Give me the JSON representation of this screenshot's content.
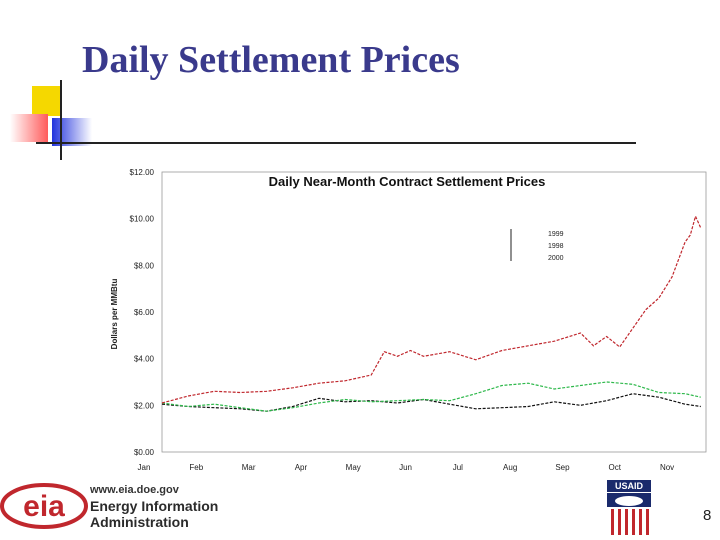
{
  "slide": {
    "title": "Daily Settlement Prices",
    "page_number": "8"
  },
  "footer": {
    "eia_logo_text": "eia",
    "eia_url": "www.eia.doe.gov",
    "eia_name_line1": "Energy Information",
    "eia_name_line2": "Administration",
    "usaid_label": "USAID"
  },
  "colors": {
    "title": "#3a3a8c",
    "series_red": "#c0272d",
    "series_black": "#111111",
    "series_green": "#2db84a",
    "eia_red": "#c0272d"
  },
  "chart_data": {
    "type": "line",
    "title": "Daily Near-Month Contract Settlement Prices",
    "ylabel": "Dollars per MMBtu",
    "xlabel": "",
    "ylim": [
      0,
      12
    ],
    "y_ticks": [
      "$0.00",
      "$2.00",
      "$4.00",
      "$6.00",
      "$8.00",
      "$10.00",
      "$12.00"
    ],
    "x_ticks": [
      "Jan",
      "Feb",
      "Mar",
      "Apr",
      "May",
      "Jun",
      "Jul",
      "Aug",
      "Sep",
      "Oct",
      "Nov"
    ],
    "grid": false,
    "legend": "upper-right",
    "series": [
      {
        "name": "1999",
        "color": "#111111",
        "x": [
          0,
          0.5,
          1,
          1.5,
          2,
          2.5,
          3,
          3.5,
          4,
          4.5,
          5,
          5.5,
          6,
          6.5,
          7,
          7.5,
          8,
          8.5,
          9,
          9.5,
          10,
          10.3
        ],
        "y": [
          2.05,
          1.95,
          1.9,
          1.85,
          1.75,
          1.95,
          2.3,
          2.15,
          2.2,
          2.1,
          2.25,
          2.05,
          1.85,
          1.9,
          1.95,
          2.15,
          2.0,
          2.2,
          2.5,
          2.35,
          2.05,
          1.95
        ]
      },
      {
        "name": "1998",
        "color": "#2db84a",
        "x": [
          0,
          0.5,
          1,
          1.5,
          2,
          2.5,
          3,
          3.5,
          4,
          4.5,
          5,
          5.5,
          6,
          6.5,
          7,
          7.5,
          8,
          8.5,
          9,
          9.5,
          10,
          10.3
        ],
        "y": [
          2.1,
          1.95,
          2.05,
          1.9,
          1.75,
          1.9,
          2.1,
          2.25,
          2.15,
          2.2,
          2.25,
          2.2,
          2.5,
          2.85,
          2.95,
          2.7,
          2.85,
          3.0,
          2.9,
          2.55,
          2.5,
          2.35
        ]
      },
      {
        "name": "2000",
        "color": "#c0272d",
        "x": [
          0,
          0.5,
          1,
          1.5,
          2,
          2.5,
          3,
          3.5,
          4,
          4.25,
          4.5,
          4.75,
          5,
          5.5,
          6,
          6.5,
          7,
          7.5,
          8,
          8.25,
          8.5,
          8.75,
          9,
          9.25,
          9.5,
          9.75,
          10,
          10.1,
          10.2,
          10.3
        ],
        "y": [
          2.1,
          2.4,
          2.6,
          2.55,
          2.6,
          2.75,
          2.95,
          3.05,
          3.3,
          4.3,
          4.1,
          4.35,
          4.1,
          4.3,
          3.95,
          4.35,
          4.55,
          4.75,
          5.1,
          4.55,
          4.95,
          4.5,
          5.3,
          6.1,
          6.6,
          7.5,
          9.0,
          9.3,
          10.1,
          9.6
        ]
      }
    ]
  }
}
